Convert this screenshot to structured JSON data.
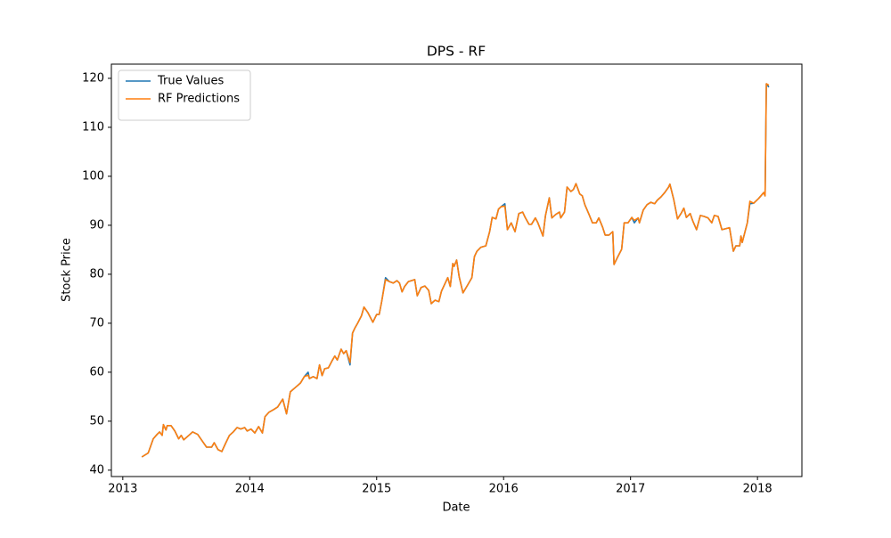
{
  "chart_data": {
    "type": "line",
    "title": "DPS - RF",
    "x_label": "Date",
    "y_label": "Stock Price",
    "x": [
      2013.15,
      2013.2,
      2013.24,
      2013.27,
      2013.29,
      2013.31,
      2013.32,
      2013.34,
      2013.35,
      2013.38,
      2013.41,
      2013.44,
      2013.46,
      2013.48,
      2013.52,
      2013.55,
      2013.59,
      2013.63,
      2013.66,
      2013.7,
      2013.72,
      2013.75,
      2013.78,
      2013.81,
      2013.84,
      2013.87,
      2013.9,
      2013.93,
      2013.96,
      2013.98,
      2014.01,
      2014.04,
      2014.07,
      2014.1,
      2014.12,
      2014.15,
      2014.19,
      2014.22,
      2014.26,
      2014.29,
      2014.32,
      2014.36,
      2014.4,
      2014.43,
      2014.46,
      2014.47,
      2014.5,
      2014.53,
      2014.55,
      2014.57,
      2014.59,
      2014.62,
      2014.65,
      2014.67,
      2014.69,
      2014.72,
      2014.74,
      2014.76,
      2014.79,
      2014.81,
      2014.83,
      2014.85,
      2014.88,
      2014.9,
      2014.93,
      2014.97,
      2015.0,
      2015.02,
      2015.04,
      2015.07,
      2015.1,
      2015.13,
      2015.16,
      2015.18,
      2015.2,
      2015.22,
      2015.25,
      2015.3,
      2015.32,
      2015.35,
      2015.38,
      2015.41,
      2015.43,
      2015.46,
      2015.49,
      2015.51,
      2015.54,
      2015.56,
      2015.58,
      2015.6,
      2015.61,
      2015.63,
      2015.65,
      2015.68,
      2015.71,
      2015.75,
      2015.77,
      2015.79,
      2015.82,
      2015.86,
      2015.89,
      2015.91,
      2015.94,
      2015.96,
      2015.98,
      2016.01,
      2016.03,
      2016.06,
      2016.09,
      2016.12,
      2016.15,
      2016.17,
      2016.2,
      2016.22,
      2016.25,
      2016.27,
      2016.31,
      2016.33,
      2016.36,
      2016.38,
      2016.41,
      2016.44,
      2016.45,
      2016.48,
      2016.5,
      2016.53,
      2016.55,
      2016.57,
      2016.6,
      2016.62,
      2016.64,
      2016.67,
      2016.7,
      2016.73,
      2016.75,
      2016.78,
      2016.8,
      2016.83,
      2016.86,
      2016.87,
      2016.9,
      2016.93,
      2016.95,
      2016.98,
      2017.01,
      2017.03,
      2017.06,
      2017.07,
      2017.1,
      2017.13,
      2017.16,
      2017.19,
      2017.21,
      2017.24,
      2017.27,
      2017.3,
      2017.31,
      2017.34,
      2017.37,
      2017.4,
      2017.42,
      2017.44,
      2017.47,
      2017.49,
      2017.52,
      2017.55,
      2017.58,
      2017.61,
      2017.64,
      2017.66,
      2017.69,
      2017.72,
      2017.75,
      2017.78,
      2017.81,
      2017.83,
      2017.86,
      2017.87,
      2017.88,
      2017.92,
      2017.94,
      2017.97,
      2018.01,
      2018.05,
      2018.06,
      2018.07,
      2018.09
    ],
    "series": [
      {
        "name": "True Values",
        "color": "#1f77b4",
        "values": [
          42.7,
          43.5,
          46.4,
          47.3,
          47.8,
          47.1,
          49.3,
          48.2,
          49.1,
          49.1,
          48.0,
          46.4,
          47.1,
          46.2,
          47.1,
          47.8,
          47.3,
          45.8,
          44.7,
          44.7,
          45.6,
          44.2,
          43.8,
          45.5,
          47.1,
          47.8,
          48.7,
          48.4,
          48.7,
          48.0,
          48.4,
          47.6,
          48.9,
          47.6,
          50.9,
          51.8,
          52.4,
          52.9,
          54.5,
          51.5,
          56.0,
          56.9,
          57.8,
          59.1,
          60.0,
          58.7,
          59.1,
          58.7,
          61.5,
          59.3,
          60.7,
          60.9,
          62.4,
          63.3,
          62.5,
          64.7,
          63.8,
          64.4,
          61.5,
          68.0,
          69.1,
          70.0,
          71.5,
          73.3,
          72.2,
          70.2,
          71.8,
          71.8,
          74.5,
          79.3,
          78.5,
          78.2,
          78.7,
          78.2,
          76.4,
          77.5,
          78.5,
          78.9,
          75.6,
          77.3,
          77.6,
          76.7,
          74.0,
          74.7,
          74.4,
          76.5,
          78.2,
          79.3,
          77.5,
          82.2,
          81.6,
          82.9,
          79.5,
          76.2,
          77.5,
          79.3,
          83.6,
          84.7,
          85.5,
          85.8,
          88.7,
          91.6,
          91.3,
          93.3,
          93.8,
          94.4,
          89.1,
          90.5,
          88.7,
          92.4,
          92.7,
          91.6,
          90.2,
          90.2,
          91.5,
          90.5,
          87.8,
          92.0,
          95.6,
          91.5,
          92.2,
          92.7,
          91.5,
          92.7,
          97.8,
          96.9,
          97.3,
          98.5,
          96.4,
          96.0,
          94.2,
          92.4,
          90.5,
          90.5,
          91.5,
          89.6,
          88.0,
          88.0,
          88.7,
          82.0,
          83.6,
          85.1,
          90.5,
          90.5,
          91.6,
          90.5,
          91.5,
          90.5,
          93.1,
          94.2,
          94.7,
          94.4,
          95.1,
          95.8,
          96.7,
          97.8,
          98.4,
          95.3,
          91.3,
          92.5,
          93.5,
          91.6,
          92.4,
          90.9,
          89.1,
          92.0,
          91.8,
          91.5,
          90.5,
          92.0,
          91.8,
          89.1,
          89.3,
          89.5,
          84.7,
          85.8,
          85.8,
          87.8,
          86.5,
          90.5,
          94.4,
          94.5,
          95.5,
          96.7,
          96.0,
          118.9,
          118.2
        ]
      },
      {
        "name": "RF Predictions",
        "color": "#ff7f0e",
        "values": [
          42.7,
          43.5,
          46.4,
          47.3,
          47.8,
          47.1,
          49.3,
          48.2,
          49.1,
          49.1,
          48.0,
          46.4,
          47.1,
          46.2,
          47.1,
          47.8,
          47.3,
          45.8,
          44.7,
          44.7,
          45.6,
          44.2,
          43.8,
          45.5,
          47.1,
          47.8,
          48.7,
          48.4,
          48.7,
          48.0,
          48.4,
          47.6,
          48.9,
          47.6,
          50.9,
          51.8,
          52.4,
          52.9,
          54.5,
          51.5,
          56.0,
          56.9,
          57.8,
          59.1,
          59.4,
          58.7,
          59.1,
          58.7,
          61.5,
          59.3,
          60.7,
          60.9,
          62.4,
          63.3,
          62.5,
          64.7,
          63.8,
          64.4,
          62.0,
          68.0,
          69.1,
          70.0,
          71.5,
          73.3,
          72.2,
          70.2,
          71.8,
          71.8,
          74.5,
          78.9,
          78.5,
          78.2,
          78.7,
          78.2,
          76.4,
          77.5,
          78.5,
          78.9,
          75.6,
          77.3,
          77.6,
          76.7,
          74.0,
          74.7,
          74.4,
          76.5,
          78.2,
          79.3,
          77.5,
          82.2,
          81.6,
          82.9,
          79.5,
          76.2,
          77.5,
          79.3,
          83.6,
          84.7,
          85.5,
          85.8,
          88.7,
          91.6,
          91.3,
          93.3,
          93.8,
          93.9,
          89.1,
          90.5,
          88.7,
          92.4,
          92.7,
          91.6,
          90.2,
          90.2,
          91.5,
          90.5,
          87.8,
          92.0,
          95.6,
          91.5,
          92.2,
          92.7,
          91.5,
          92.7,
          97.8,
          96.9,
          97.3,
          98.5,
          96.4,
          96.0,
          94.2,
          92.4,
          90.5,
          90.5,
          91.5,
          89.6,
          88.0,
          88.0,
          88.7,
          82.0,
          83.6,
          85.1,
          90.5,
          90.5,
          91.6,
          91.0,
          91.5,
          90.5,
          93.1,
          94.2,
          94.7,
          94.4,
          95.1,
          95.8,
          96.7,
          97.8,
          98.4,
          95.3,
          91.3,
          92.5,
          93.5,
          91.6,
          92.4,
          90.9,
          89.1,
          92.0,
          91.8,
          91.5,
          90.5,
          92.0,
          91.8,
          89.1,
          89.3,
          89.5,
          84.7,
          85.8,
          85.8,
          87.8,
          86.5,
          90.5,
          94.9,
          94.5,
          95.5,
          96.7,
          96.0,
          118.9,
          118.6
        ]
      }
    ],
    "xlim": [
      2012.91,
      2018.35
    ],
    "xticks": [
      2013,
      2014,
      2015,
      2016,
      2017,
      2018
    ],
    "ylim": [
      38.7,
      122.9
    ],
    "yticks": [
      40,
      50,
      60,
      70,
      80,
      90,
      100,
      110,
      120
    ],
    "grid": false,
    "legend": "upper left"
  }
}
